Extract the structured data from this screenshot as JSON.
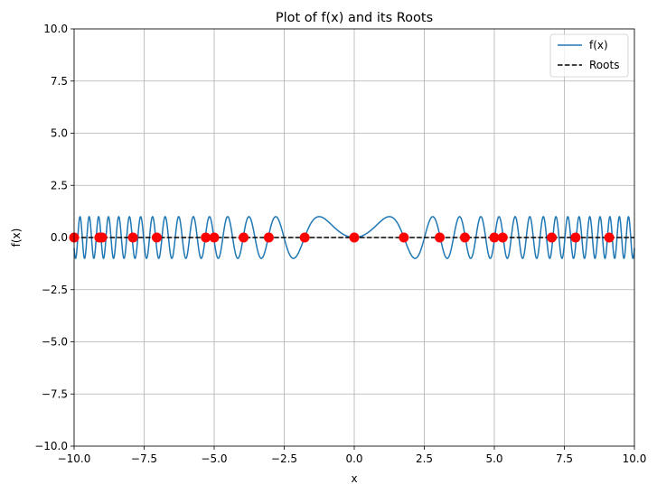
{
  "chart_data": {
    "type": "line",
    "title": "Plot of f(x) and its Roots",
    "xlabel": "x",
    "ylabel": "f(x)",
    "xlim": [
      -10,
      10
    ],
    "ylim": [
      -10,
      10
    ],
    "grid": true,
    "legend_position": "top-right",
    "x_ticks": [
      -10,
      -7.5,
      -5,
      -2.5,
      0,
      2.5,
      5,
      7.5,
      10
    ],
    "x_tick_labels": [
      "−10.0",
      "−7.5",
      "−5.0",
      "−2.5",
      "0.0",
      "2.5",
      "5.0",
      "7.5",
      "10.0"
    ],
    "y_ticks": [
      -10,
      -7.5,
      -5,
      -2.5,
      0,
      2.5,
      5,
      7.5,
      10
    ],
    "y_tick_labels": [
      "−10.0",
      "−7.5",
      "−5.0",
      "−2.5",
      "0.0",
      "2.5",
      "5.0",
      "7.5",
      "10.0"
    ],
    "series": [
      {
        "name": "f(x)",
        "style": "solid",
        "color": "#1f77b4",
        "function": "sin(x^2)",
        "x_range": [
          -10,
          10
        ]
      },
      {
        "name": "Roots",
        "style": "dashed",
        "color": "#000000",
        "values": [
          [
            -10,
            0
          ],
          [
            10,
            0
          ]
        ]
      }
    ],
    "roots": {
      "color": "#ff0000",
      "x": [
        -10.0,
        -9.1,
        -9.0,
        -7.9,
        -7.05,
        -5.3,
        -5.0,
        -3.95,
        -3.05,
        -1.77,
        0.0,
        1.77,
        3.05,
        3.95,
        5.0,
        5.3,
        7.05,
        7.9,
        9.1
      ],
      "y": [
        0,
        0,
        0,
        0,
        0,
        0,
        0,
        0,
        0,
        0,
        0,
        0,
        0,
        0,
        0,
        0,
        0,
        0,
        0
      ]
    }
  }
}
